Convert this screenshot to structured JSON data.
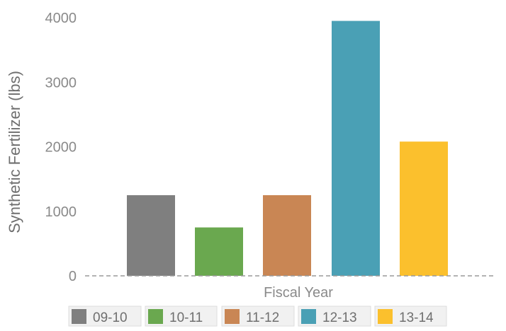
{
  "chart_data": {
    "type": "bar",
    "categories": [
      "09-10",
      "10-11",
      "11-12",
      "12-13",
      "13-14"
    ],
    "values": [
      1250,
      750,
      1250,
      3950,
      2080
    ],
    "colors": [
      "#7f7f7f",
      "#6aa84f",
      "#c98654",
      "#4aa0b5",
      "#fbc02d"
    ],
    "ylabel": "Synthetic Fertilizer (lbs)",
    "xlabel": "Fiscal Year",
    "ylim": [
      0,
      4000
    ],
    "yticks": [
      "0",
      "1000",
      "2000",
      "3000",
      "4000"
    ],
    "ytick_values": [
      0,
      1000,
      2000,
      3000,
      4000
    ],
    "legend": {
      "placement": "bottom",
      "entries": [
        "09-10",
        "10-11",
        "11-12",
        "12-13",
        "13-14"
      ]
    },
    "grid": false,
    "baseline": "dashed"
  }
}
